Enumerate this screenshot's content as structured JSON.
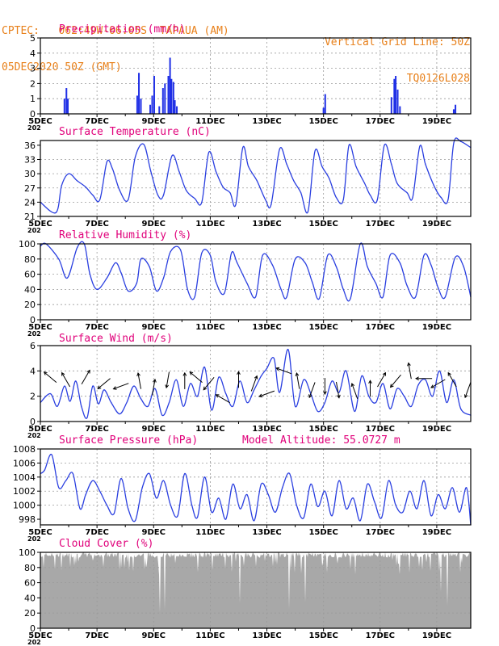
{
  "header": {
    "line1": "CPTEC:   062:49W-06:05S  TAPAUA (AM)",
    "line2": "05DEC2020 50Z (GMT)",
    "right1": "Vertical Grid Line: 50Z",
    "right2": "TQ0126L028"
  },
  "x_axis": {
    "ticks": [
      "5DEC",
      "7DEC",
      "9DEC",
      "11DEC",
      "13DEC",
      "15DEC",
      "17DEC",
      "19DEC"
    ],
    "tick_positions_days": [
      0,
      2,
      4,
      6,
      8,
      10,
      12,
      14
    ],
    "range_days": [
      0,
      15.2
    ],
    "year_fragment": "202"
  },
  "colors": {
    "title": "#e0007a",
    "header": "#e8801a",
    "line": "#2a3fe0",
    "bar": "#1f2fe6",
    "cloud": "#a8a8a8",
    "grid": "#9a9a9a"
  },
  "chart_data": [
    {
      "type": "bar",
      "title": "Precipitation (mm/h)",
      "ylim": [
        0,
        5
      ],
      "yticks": [
        "0",
        "1",
        "2",
        "3",
        "4",
        "5"
      ],
      "x_days": [
        0.85,
        0.92,
        0.97,
        3.42,
        3.48,
        3.55,
        3.88,
        3.95,
        4.02,
        4.2,
        4.33,
        4.4,
        4.52,
        4.58,
        4.63,
        4.7,
        4.75,
        4.82,
        10.0,
        10.06,
        12.4,
        12.5,
        12.55,
        12.62,
        12.7,
        14.6,
        14.66
      ],
      "values": [
        1.0,
        1.7,
        1.0,
        1.2,
        2.7,
        1.0,
        0.6,
        1.2,
        2.5,
        0.5,
        1.7,
        2.0,
        2.5,
        3.7,
        2.3,
        2.1,
        0.9,
        0.5,
        0.4,
        1.3,
        1.1,
        2.3,
        2.5,
        1.6,
        0.5,
        0.3,
        0.6
      ]
    },
    {
      "type": "line",
      "title": "Surface Temperature (nC)",
      "ylim": [
        21,
        37
      ],
      "yticks": [
        "21",
        "24",
        "27",
        "30",
        "33",
        "36"
      ],
      "x_days": [
        0,
        0.55,
        0.75,
        1.0,
        1.3,
        1.6,
        1.85,
        2.1,
        2.35,
        2.55,
        2.8,
        3.1,
        3.35,
        3.65,
        3.9,
        4.15,
        4.35,
        4.65,
        4.9,
        5.15,
        5.45,
        5.7,
        5.95,
        6.2,
        6.45,
        6.7,
        6.9,
        7.15,
        7.35,
        7.65,
        7.95,
        8.15,
        8.45,
        8.7,
        8.95,
        9.2,
        9.45,
        9.7,
        9.95,
        10.2,
        10.45,
        10.7,
        10.9,
        11.15,
        11.45,
        11.65,
        11.9,
        12.15,
        12.4,
        12.6,
        12.95,
        13.15,
        13.4,
        13.6,
        13.9,
        14.15,
        14.4,
        14.6,
        14.85,
        15.2
      ],
      "values": [
        24,
        21.8,
        27.5,
        30,
        28.5,
        27.2,
        25.5,
        24.5,
        32.5,
        31,
        26.5,
        24.5,
        33.5,
        36.2,
        30.5,
        25.5,
        25.5,
        33.8,
        30.5,
        26.5,
        24.8,
        24,
        34.5,
        30.5,
        27.2,
        26,
        23.5,
        35.5,
        31.5,
        28.5,
        24.5,
        23.5,
        35.2,
        32,
        28.5,
        26,
        22,
        34.8,
        31.5,
        29,
        25,
        24.5,
        36,
        31.5,
        28,
        25.5,
        24.5,
        36,
        32,
        28,
        26,
        25,
        35.8,
        32,
        27.5,
        25,
        24.5,
        36.5,
        36.8,
        35.5
      ]
    },
    {
      "type": "line",
      "title": "Relative Humidity (%)",
      "ylim": [
        0,
        100
      ],
      "yticks": [
        "0",
        "20",
        "40",
        "60",
        "80",
        "100"
      ],
      "x_days": [
        0,
        0.2,
        0.65,
        0.95,
        1.3,
        1.55,
        1.75,
        2.0,
        2.35,
        2.65,
        2.85,
        3.1,
        3.4,
        3.55,
        3.85,
        4.1,
        4.35,
        4.6,
        4.95,
        5.2,
        5.45,
        5.7,
        6.0,
        6.2,
        6.5,
        6.75,
        6.95,
        7.3,
        7.6,
        7.85,
        8.2,
        8.5,
        8.7,
        9.0,
        9.35,
        9.6,
        9.85,
        10.15,
        10.45,
        10.7,
        10.95,
        11.3,
        11.55,
        11.85,
        12.1,
        12.35,
        12.7,
        12.95,
        13.25,
        13.55,
        13.8,
        14.05,
        14.3,
        14.65,
        14.95,
        15.2
      ],
      "values": [
        97,
        100,
        80,
        55,
        95,
        100,
        60,
        40,
        55,
        75,
        62,
        38,
        48,
        80,
        70,
        38,
        55,
        90,
        92,
        40,
        30,
        88,
        85,
        50,
        35,
        88,
        75,
        48,
        30,
        85,
        72,
        40,
        30,
        80,
        75,
        50,
        28,
        85,
        70,
        40,
        28,
        100,
        70,
        48,
        30,
        85,
        75,
        45,
        30,
        85,
        72,
        42,
        30,
        82,
        70,
        30
      ]
    },
    {
      "type": "line",
      "title": "Surface Wind (m/s)",
      "ylim": [
        0,
        6
      ],
      "yticks": [
        "0",
        "2",
        "4",
        "6"
      ],
      "x_days": [
        0,
        0.35,
        0.6,
        0.85,
        1.05,
        1.25,
        1.45,
        1.65,
        1.85,
        2.05,
        2.25,
        2.5,
        2.8,
        3.05,
        3.3,
        3.55,
        3.8,
        4.05,
        4.3,
        4.55,
        4.8,
        5.05,
        5.3,
        5.55,
        5.8,
        6.05,
        6.3,
        6.55,
        6.8,
        7.05,
        7.3,
        7.55,
        7.8,
        8.0,
        8.25,
        8.45,
        8.75,
        9.0,
        9.3,
        9.55,
        9.8,
        10.05,
        10.3,
        10.55,
        10.8,
        11.1,
        11.35,
        11.6,
        11.85,
        12.1,
        12.35,
        12.6,
        12.85,
        13.1,
        13.35,
        13.6,
        13.85,
        14.1,
        14.35,
        14.6,
        14.85,
        15.2
      ],
      "values": [
        1.5,
        2.2,
        1.2,
        2.8,
        1.6,
        3.2,
        1.2,
        0.3,
        2.8,
        1.4,
        2.5,
        1.5,
        0.6,
        1.5,
        2.8,
        1.8,
        1.2,
        2.6,
        0.5,
        1.5,
        3.3,
        1.2,
        3.0,
        2.0,
        4.3,
        0.9,
        3.5,
        2.2,
        1.2,
        3.2,
        1.5,
        2.5,
        3.6,
        4.2,
        5.0,
        2.3,
        5.7,
        1.2,
        3.3,
        2.2,
        0.8,
        1.5,
        3.2,
        2.3,
        4.0,
        0.8,
        3.6,
        2.0,
        1.5,
        3.0,
        1.0,
        2.6,
        2.0,
        1.2,
        2.9,
        3.3,
        2.0,
        4.0,
        1.5,
        3.3,
        1.0,
        0.5
      ],
      "arrows_x_days": [
        0.35,
        0.9,
        1.6,
        2.25,
        2.85,
        3.5,
        4.0,
        4.5,
        5.1,
        5.5,
        5.95,
        6.45,
        7.0,
        7.55,
        8.0,
        8.6,
        9.1,
        9.6,
        10.05,
        10.5,
        11.1,
        11.65,
        12.05,
        12.55,
        13.05,
        13.55,
        14.05,
        14.55,
        15.1
      ],
      "arrows_speed": [
        3.5,
        3.3,
        3.5,
        3.0,
        2.8,
        3.2,
        2.7,
        3.3,
        3.2,
        3.5,
        3.0,
        1.8,
        3.3,
        3.0,
        2.2,
        4.0,
        3.2,
        2.5,
        2.8,
        2.5,
        2.4,
        2.6,
        3.3,
        3.2,
        4.0,
        3.4,
        3.0,
        3.3,
        2.5
      ],
      "arrows_dir_deg": [
        140,
        120,
        60,
        220,
        200,
        100,
        80,
        260,
        90,
        140,
        230,
        150,
        90,
        70,
        200,
        160,
        100,
        250,
        270,
        280,
        110,
        90,
        60,
        230,
        100,
        180,
        210,
        120,
        250
      ]
    },
    {
      "type": "line",
      "title": "Surface Pressure (hPa)",
      "annotation": "Model Altitude: 55.0727 m",
      "ylim": [
        997.2,
        1008
      ],
      "yticks": [
        "998",
        "1000",
        "1002",
        "1004",
        "1006",
        "1008"
      ],
      "x_days": [
        0,
        0.15,
        0.4,
        0.65,
        0.9,
        1.15,
        1.4,
        1.6,
        1.85,
        2.1,
        2.35,
        2.6,
        2.85,
        3.1,
        3.35,
        3.6,
        3.85,
        4.1,
        4.35,
        4.6,
        4.85,
        5.1,
        5.35,
        5.55,
        5.8,
        6.05,
        6.3,
        6.55,
        6.8,
        7.05,
        7.3,
        7.55,
        7.8,
        8.05,
        8.3,
        8.55,
        8.8,
        9.05,
        9.3,
        9.55,
        9.8,
        10.05,
        10.3,
        10.55,
        10.8,
        11.05,
        11.3,
        11.55,
        11.8,
        12.05,
        12.3,
        12.55,
        12.8,
        13.05,
        13.3,
        13.55,
        13.8,
        14.05,
        14.3,
        14.55,
        14.8,
        15.05,
        15.2
      ],
      "values": [
        1004.5,
        1005,
        1007.2,
        1002.5,
        1003.5,
        1004.5,
        999.5,
        1001.5,
        1003.5,
        1002,
        1000,
        998.8,
        1003.8,
        999.5,
        997.8,
        1002.5,
        1004.5,
        1001,
        1003.5,
        1000,
        998.5,
        1004.5,
        1000,
        998.3,
        1004,
        999,
        1001,
        998,
        1003,
        999.5,
        1001.5,
        997.8,
        1003,
        1001.5,
        999,
        1002.5,
        1004.5,
        1000,
        998.2,
        1003,
        999.8,
        1002,
        998.5,
        1003.5,
        999.5,
        1001,
        997.8,
        1003,
        1000.5,
        998.2,
        1003.5,
        1000,
        999,
        1002,
        999.5,
        1003.5,
        998.5,
        1001.5,
        999.5,
        1002.5,
        999,
        1002.5,
        997.2
      ]
    },
    {
      "type": "area",
      "title": "Cloud Cover (%)",
      "ylim": [
        0,
        100
      ],
      "yticks": [
        "0",
        "20",
        "40",
        "60",
        "80",
        "100"
      ]
    }
  ]
}
